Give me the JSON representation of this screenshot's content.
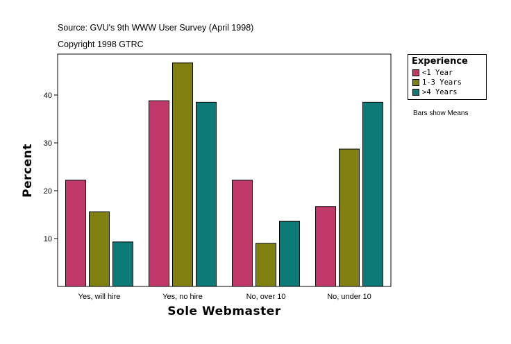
{
  "source_text": "Source: GVU's 9th WWW User Survey (April 1998)",
  "copyright_text": "Copyright 1998 GTRC",
  "note_text": "Bars show Means",
  "colors": {
    "series": [
      "#c0396a",
      "#808010",
      "#0e7a78"
    ],
    "background": "#ffffff",
    "axis": "#000000"
  },
  "chart_data": {
    "type": "bar",
    "xlabel": "Sole Webmaster",
    "ylabel": "Percent",
    "categories": [
      "Yes, will hire",
      "Yes, no hire",
      "No, over 10",
      "No, under 10"
    ],
    "yticks": [
      10,
      20,
      30,
      40
    ],
    "ylim": [
      0,
      50
    ],
    "legend": {
      "title": "Experience",
      "placement": "right"
    },
    "series": [
      {
        "name": "<1 Year",
        "values": [
          22.2,
          38.8,
          22.2,
          16.7
        ]
      },
      {
        "name": "1-3 Years",
        "values": [
          15.6,
          46.7,
          9.0,
          28.7
        ]
      },
      {
        "name": ">4 Years",
        "values": [
          9.3,
          38.5,
          13.6,
          38.5
        ]
      }
    ],
    "grid": false
  }
}
